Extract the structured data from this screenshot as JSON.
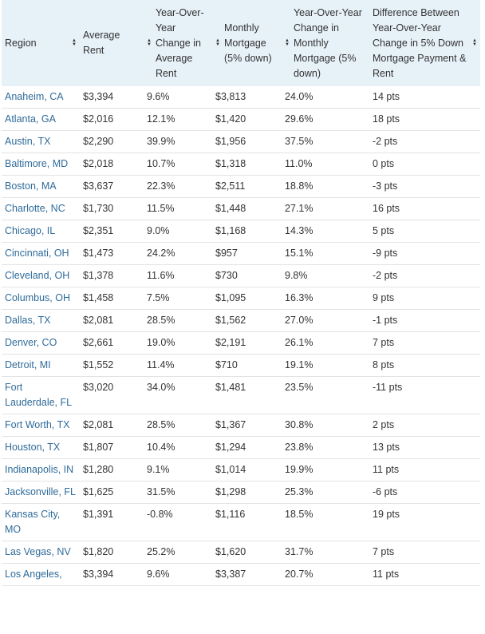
{
  "table": {
    "headers": [
      "Region",
      "Average Rent",
      "Year-Over-Year Change in Average Rent",
      "Monthly Mortgage (5% down)",
      "Year-Over-Year Change in Monthly Mortgage (5% down)",
      "Difference Between Year-Over-Year Change in 5% Down Mortgage Payment & Rent"
    ],
    "rows": [
      [
        "Anaheim, CA",
        "$3,394",
        "9.6%",
        "$3,813",
        "24.0%",
        "14 pts"
      ],
      [
        "Atlanta, GA",
        "$2,016",
        "12.1%",
        "$1,420",
        "29.6%",
        "18 pts"
      ],
      [
        "Austin, TX",
        "$2,290",
        "39.9%",
        "$1,956",
        "37.5%",
        "-2 pts"
      ],
      [
        "Baltimore, MD",
        "$2,018",
        "10.7%",
        "$1,318",
        "11.0%",
        "0 pts"
      ],
      [
        "Boston, MA",
        "$3,637",
        "22.3%",
        "$2,511",
        "18.8%",
        "-3 pts"
      ],
      [
        "Charlotte, NC",
        "$1,730",
        "11.5%",
        "$1,448",
        "27.1%",
        "16 pts"
      ],
      [
        "Chicago, IL",
        "$2,351",
        "9.0%",
        "$1,168",
        "14.3%",
        "5 pts"
      ],
      [
        "Cincinnati, OH",
        "$1,473",
        "24.2%",
        "$957",
        "15.1%",
        "-9 pts"
      ],
      [
        "Cleveland, OH",
        "$1,378",
        "11.6%",
        "$730",
        "9.8%",
        "-2 pts"
      ],
      [
        "Columbus, OH",
        "$1,458",
        "7.5%",
        "$1,095",
        "16.3%",
        "9 pts"
      ],
      [
        "Dallas, TX",
        "$2,081",
        "28.5%",
        "$1,562",
        "27.0%",
        "-1 pts"
      ],
      [
        "Denver, CO",
        "$2,661",
        "19.0%",
        "$2,191",
        "26.1%",
        "7 pts"
      ],
      [
        "Detroit, MI",
        "$1,552",
        "11.4%",
        "$710",
        "19.1%",
        "8 pts"
      ],
      [
        "Fort Lauderdale, FL",
        "$3,020",
        "34.0%",
        "$1,481",
        "23.5%",
        "-11 pts"
      ],
      [
        "Fort Worth, TX",
        "$2,081",
        "28.5%",
        "$1,367",
        "30.8%",
        "2 pts"
      ],
      [
        "Houston, TX",
        "$1,807",
        "10.4%",
        "$1,294",
        "23.8%",
        "13 pts"
      ],
      [
        "Indianapolis, IN",
        "$1,280",
        "9.1%",
        "$1,014",
        "19.9%",
        "11 pts"
      ],
      [
        "Jacksonville, FL",
        "$1,625",
        "31.5%",
        "$1,298",
        "25.3%",
        "-6 pts"
      ],
      [
        "Kansas City, MO",
        "$1,391",
        "-0.8%",
        "$1,116",
        "18.5%",
        "19 pts"
      ],
      [
        "Las Vegas, NV",
        "$1,820",
        "25.2%",
        "$1,620",
        "31.7%",
        "7 pts"
      ],
      [
        "Los Angeles,",
        "$3,394",
        "9.6%",
        "$3,387",
        "20.7%",
        "11 pts"
      ]
    ]
  },
  "colors": {
    "header_bg": "#e7f1f8",
    "region_link": "#2f6b9a",
    "row_border": "#e3e3e3"
  },
  "icons": {
    "sort": "sort-arrows-icon"
  }
}
